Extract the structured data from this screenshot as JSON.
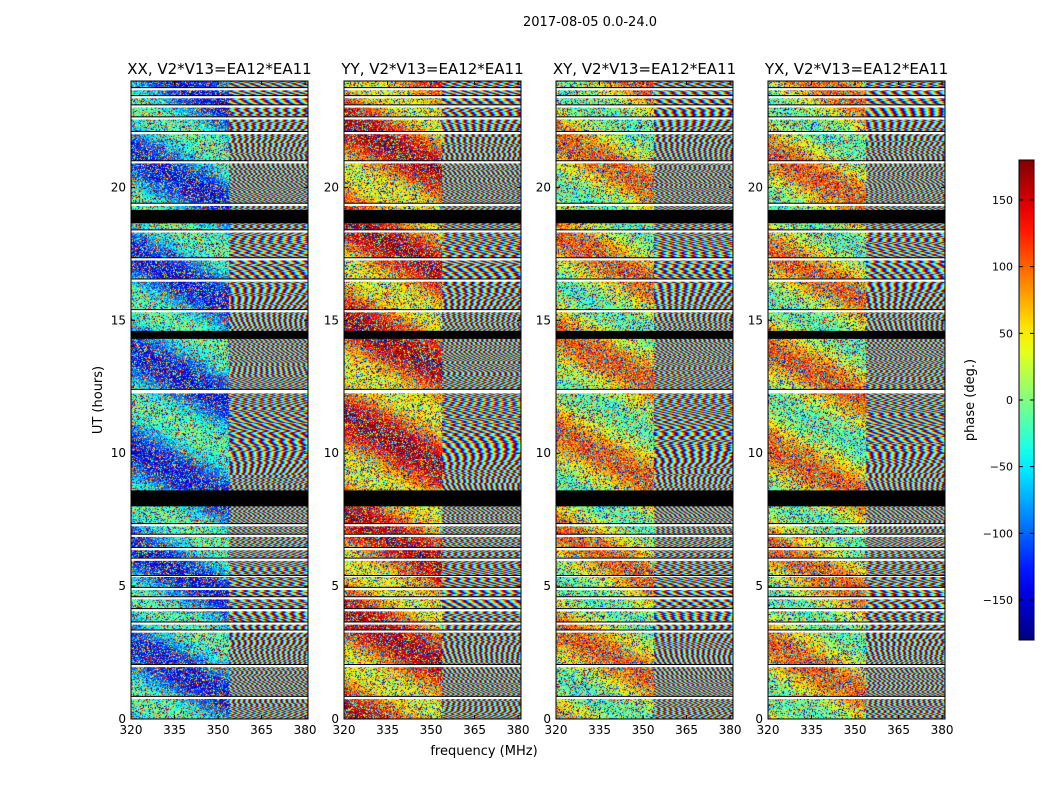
{
  "figure": {
    "suptitle": "2017-08-05 0.0-24.0",
    "xlabel": "frequency (MHz)",
    "ylabel": "UT (hours)",
    "colorbar_label": "phase (deg.)"
  },
  "chart_data": {
    "type": "heatmap",
    "title": "2017-08-05 0.0-24.0",
    "xlabel": "frequency (MHz)",
    "ylabel": "UT (hours)",
    "xlim": [
      320,
      381
    ],
    "ylim": [
      0,
      24
    ],
    "xticks": [
      320,
      335,
      350,
      365,
      380
    ],
    "yticks": [
      0,
      5,
      10,
      15,
      20
    ],
    "panels": [
      {
        "title": "XX, V2*V13=EA12*EA11"
      },
      {
        "title": "YY, V2*V13=EA12*EA11"
      },
      {
        "title": "XY, V2*V13=EA12*EA11"
      },
      {
        "title": "YX, V2*V13=EA12*EA11"
      }
    ],
    "colorbar": {
      "label": "phase (deg.)",
      "range": [
        -180,
        180
      ],
      "ticks": [
        -150,
        -100,
        -50,
        0,
        50,
        100,
        150
      ],
      "tick_labels": [
        "−150",
        "−100",
        "−50",
        "0",
        "50",
        "100",
        "150"
      ],
      "colormap": "jet"
    },
    "flagged_bands_hours": [
      [
        0.75,
        0.85
      ],
      [
        1.95,
        2.05
      ],
      [
        3.25,
        3.35
      ],
      [
        3.55,
        3.65
      ],
      [
        4.05,
        4.15
      ],
      [
        4.5,
        4.6
      ],
      [
        4.85,
        4.95
      ],
      [
        5.35,
        5.4
      ],
      [
        5.95,
        6.05
      ],
      [
        6.35,
        6.45
      ],
      [
        6.85,
        6.95
      ],
      [
        7.25,
        7.35
      ],
      [
        8.0,
        8.6
      ],
      [
        12.25,
        12.4
      ],
      [
        14.3,
        14.6
      ],
      [
        15.3,
        15.4
      ],
      [
        16.45,
        16.55
      ],
      [
        17.25,
        17.35
      ],
      [
        18.3,
        18.4
      ],
      [
        18.65,
        19.15
      ],
      [
        19.3,
        19.4
      ],
      [
        20.9,
        21.0
      ],
      [
        22.0,
        22.1
      ],
      [
        22.55,
        22.65
      ],
      [
        23.0,
        23.1
      ],
      [
        23.35,
        23.45
      ],
      [
        23.65,
        23.75
      ]
    ]
  }
}
